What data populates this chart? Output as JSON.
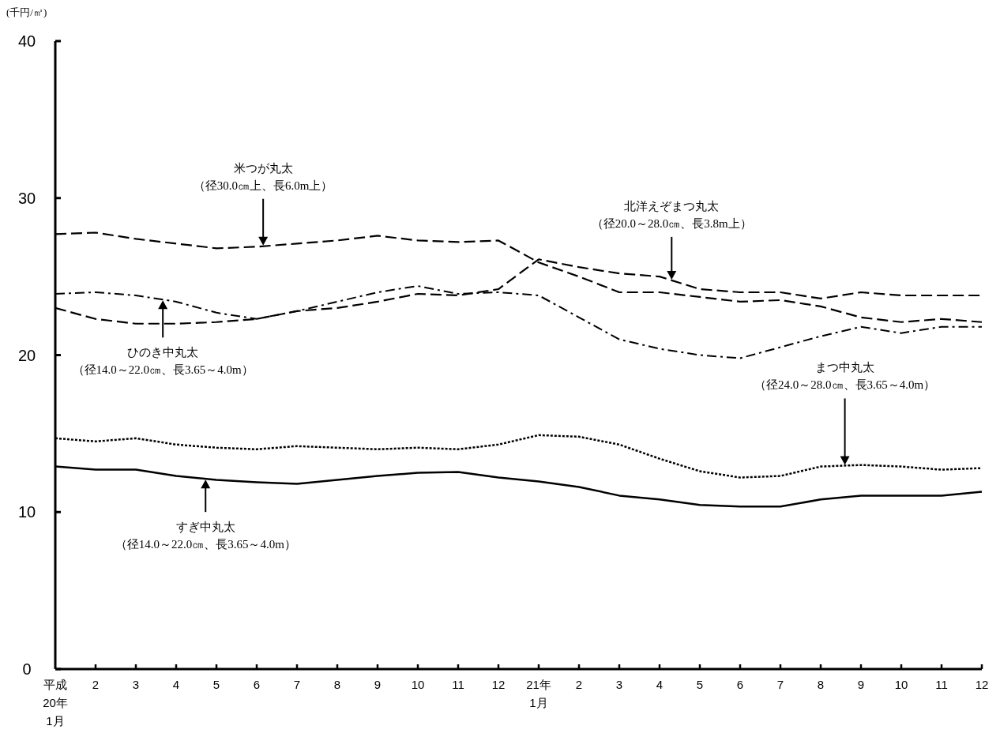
{
  "chart_data": {
    "type": "line",
    "ylabel": "(千円/㎥)",
    "categories": [
      "平成\n20年\n1月",
      "2",
      "3",
      "4",
      "5",
      "6",
      "7",
      "8",
      "9",
      "10",
      "11",
      "12",
      "21年\n1月",
      "2",
      "3",
      "4",
      "5",
      "6",
      "7",
      "8",
      "9",
      "10",
      "11",
      "12"
    ],
    "ylim": [
      0,
      40
    ],
    "yticks": [
      0,
      10,
      20,
      30,
      40
    ],
    "grid": false,
    "series": [
      {
        "name": "米つが丸太（径30.0㎝上、長6.0m上）",
        "color": "#000000",
        "line_style": "dashed",
        "values": [
          27.7,
          27.8,
          27.4,
          27.1,
          26.8,
          26.9,
          27.1,
          27.3,
          27.6,
          27.3,
          27.2,
          27.3,
          25.9,
          25.0,
          24.0,
          24.0,
          23.7,
          23.4,
          23.5,
          23.1,
          22.4,
          22.1,
          22.3,
          22.1
        ]
      },
      {
        "name": "北洋えぞまつ丸太（径20.0～28.0㎝、長3.8m上）",
        "color": "#000000",
        "line_style": "dashed",
        "values": [
          23.0,
          22.3,
          22.0,
          22.0,
          22.1,
          22.3,
          22.8,
          23.0,
          23.4,
          23.9,
          23.8,
          24.2,
          26.1,
          25.6,
          25.2,
          25.0,
          24.2,
          24.0,
          24.0,
          23.6,
          24.0,
          23.8,
          23.8,
          23.8
        ]
      },
      {
        "name": "ひのき中丸太（径14.0～22.0㎝、長3.65～4.0m）",
        "color": "#000000",
        "line_style": "dashdot",
        "values": [
          23.9,
          24.0,
          23.8,
          23.4,
          22.7,
          22.3,
          22.8,
          23.4,
          24.0,
          24.4,
          23.9,
          24.0,
          23.8,
          22.4,
          21.0,
          20.4,
          20.0,
          19.8,
          20.5,
          21.2,
          21.8,
          21.4,
          21.8,
          21.8
        ]
      },
      {
        "name": "まつ中丸太（径24.0～28.0㎝、長3.65～4.0m）",
        "color": "#000000",
        "line_style": "dotted",
        "values": [
          14.7,
          14.5,
          14.7,
          14.3,
          14.1,
          14.0,
          14.2,
          14.1,
          14.0,
          14.1,
          14.0,
          14.3,
          14.9,
          14.8,
          14.3,
          13.4,
          12.6,
          12.2,
          12.3,
          12.9,
          13.0,
          12.9,
          12.7,
          12.8
        ]
      },
      {
        "name": "すぎ中丸太（径14.0～22.0㎝、長3.65～4.0m）",
        "color": "#000000",
        "line_style": "solid",
        "values": [
          12.9,
          12.7,
          12.7,
          12.3,
          12.05,
          11.9,
          11.8,
          12.05,
          12.3,
          12.5,
          12.55,
          12.2,
          11.95,
          11.6,
          11.05,
          10.8,
          10.45,
          10.35,
          10.35,
          10.8,
          11.05,
          11.05,
          11.05,
          11.3
        ]
      }
    ]
  }
}
